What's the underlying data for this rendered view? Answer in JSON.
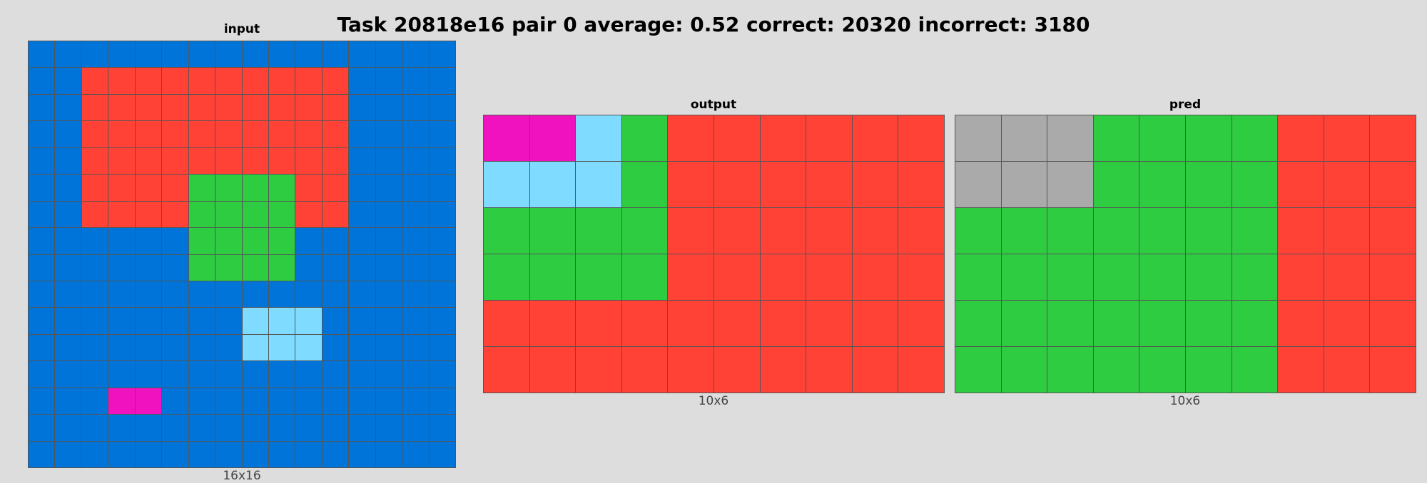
{
  "title": "Task 20818e16 pair 0 average: 0.52 correct: 20320 incorrect: 3180",
  "palette": {
    "0": "#000000",
    "1": "#0074D9",
    "2": "#FF4136",
    "3": "#2ECC40",
    "5": "#AAAAAA",
    "6": "#F012BE",
    "8": "#7FDBFF"
  },
  "panels": [
    {
      "id": "input",
      "label": "input",
      "size_label": "16x16",
      "grid": [
        [
          1,
          1,
          1,
          1,
          1,
          1,
          1,
          1,
          1,
          1,
          1,
          1,
          1,
          1,
          1,
          1
        ],
        [
          1,
          1,
          2,
          2,
          2,
          2,
          2,
          2,
          2,
          2,
          2,
          2,
          1,
          1,
          1,
          1
        ],
        [
          1,
          1,
          2,
          2,
          2,
          2,
          2,
          2,
          2,
          2,
          2,
          2,
          1,
          1,
          1,
          1
        ],
        [
          1,
          1,
          2,
          2,
          2,
          2,
          2,
          2,
          2,
          2,
          2,
          2,
          1,
          1,
          1,
          1
        ],
        [
          1,
          1,
          2,
          2,
          2,
          2,
          2,
          2,
          2,
          2,
          2,
          2,
          1,
          1,
          1,
          1
        ],
        [
          1,
          1,
          2,
          2,
          2,
          2,
          3,
          3,
          3,
          3,
          2,
          2,
          1,
          1,
          1,
          1
        ],
        [
          1,
          1,
          2,
          2,
          2,
          2,
          3,
          3,
          3,
          3,
          2,
          2,
          1,
          1,
          1,
          1
        ],
        [
          1,
          1,
          1,
          1,
          1,
          1,
          3,
          3,
          3,
          3,
          1,
          1,
          1,
          1,
          1,
          1
        ],
        [
          1,
          1,
          1,
          1,
          1,
          1,
          3,
          3,
          3,
          3,
          1,
          1,
          1,
          1,
          1,
          1
        ],
        [
          1,
          1,
          1,
          1,
          1,
          1,
          1,
          1,
          1,
          1,
          1,
          1,
          1,
          1,
          1,
          1
        ],
        [
          1,
          1,
          1,
          1,
          1,
          1,
          1,
          1,
          8,
          8,
          8,
          1,
          1,
          1,
          1,
          1
        ],
        [
          1,
          1,
          1,
          1,
          1,
          1,
          1,
          1,
          8,
          8,
          8,
          1,
          1,
          1,
          1,
          1
        ],
        [
          1,
          1,
          1,
          1,
          1,
          1,
          1,
          1,
          1,
          1,
          1,
          1,
          1,
          1,
          1,
          1
        ],
        [
          1,
          1,
          1,
          6,
          6,
          1,
          1,
          1,
          1,
          1,
          1,
          1,
          1,
          1,
          1,
          1
        ],
        [
          1,
          1,
          1,
          1,
          1,
          1,
          1,
          1,
          1,
          1,
          1,
          1,
          1,
          1,
          1,
          1
        ],
        [
          1,
          1,
          1,
          1,
          1,
          1,
          1,
          1,
          1,
          1,
          1,
          1,
          1,
          1,
          1,
          1
        ]
      ]
    },
    {
      "id": "output",
      "label": "output",
      "size_label": "10x6",
      "grid": [
        [
          6,
          6,
          8,
          3,
          2,
          2,
          2,
          2,
          2,
          2
        ],
        [
          8,
          8,
          8,
          3,
          2,
          2,
          2,
          2,
          2,
          2
        ],
        [
          3,
          3,
          3,
          3,
          2,
          2,
          2,
          2,
          2,
          2
        ],
        [
          3,
          3,
          3,
          3,
          2,
          2,
          2,
          2,
          2,
          2
        ],
        [
          2,
          2,
          2,
          2,
          2,
          2,
          2,
          2,
          2,
          2
        ],
        [
          2,
          2,
          2,
          2,
          2,
          2,
          2,
          2,
          2,
          2
        ]
      ]
    },
    {
      "id": "pred",
      "label": "pred",
      "size_label": "10x6",
      "grid": [
        [
          5,
          5,
          5,
          3,
          3,
          3,
          3,
          2,
          2,
          2
        ],
        [
          5,
          5,
          5,
          3,
          3,
          3,
          3,
          2,
          2,
          2
        ],
        [
          3,
          3,
          3,
          3,
          3,
          3,
          3,
          2,
          2,
          2
        ],
        [
          3,
          3,
          3,
          3,
          3,
          3,
          3,
          2,
          2,
          2
        ],
        [
          3,
          3,
          3,
          3,
          3,
          3,
          3,
          2,
          2,
          2
        ],
        [
          3,
          3,
          3,
          3,
          3,
          3,
          3,
          2,
          2,
          2
        ]
      ]
    }
  ]
}
